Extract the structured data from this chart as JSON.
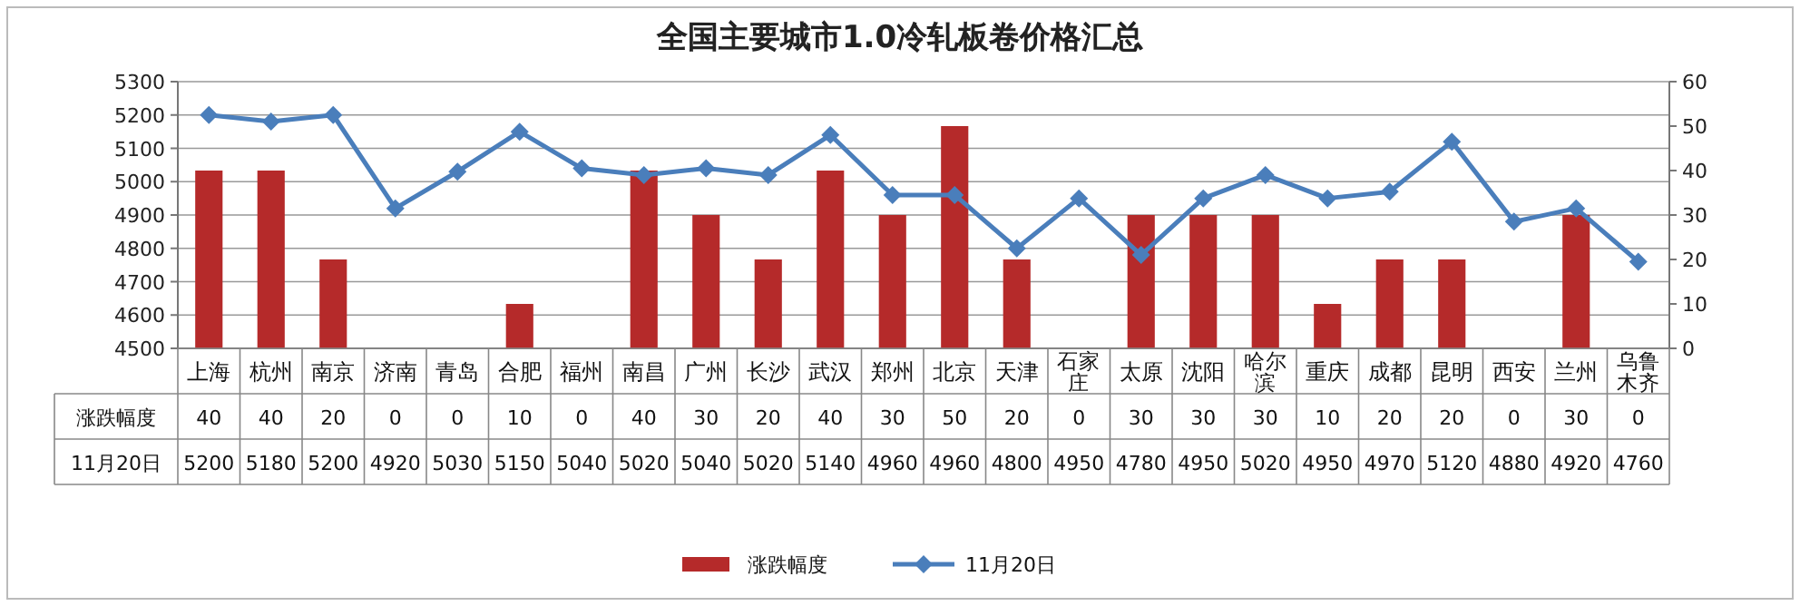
{
  "chart_data": {
    "type": "bar",
    "title": "全国主要城市1.0冷轧板卷价格汇总",
    "categories": [
      "上海",
      "杭州",
      "南京",
      "济南",
      "青岛",
      "合肥",
      "福州",
      "南昌",
      "广州",
      "长沙",
      "武汉",
      "郑州",
      "北京",
      "天津",
      "石家庄",
      "太原",
      "沈阳",
      "哈尔滨",
      "重庆",
      "成都",
      "昆明",
      "西安",
      "兰州",
      "乌鲁木齐"
    ],
    "series": [
      {
        "name": "涨跌幅度",
        "axis": "y2",
        "color": "#b52a2a",
        "values": [
          40,
          40,
          20,
          0,
          0,
          10,
          0,
          40,
          30,
          20,
          40,
          30,
          50,
          20,
          0,
          30,
          30,
          30,
          10,
          20,
          20,
          0,
          30,
          0
        ]
      },
      {
        "name": "11月20日",
        "type": "line",
        "color": "#4a7ebb",
        "values": [
          5200,
          5180,
          5200,
          4920,
          5030,
          5150,
          5040,
          5020,
          5040,
          5020,
          5140,
          4960,
          4960,
          4800,
          4950,
          4780,
          4950,
          5020,
          4950,
          4970,
          5120,
          4880,
          4920,
          4760
        ]
      }
    ],
    "ylim": [
      4500,
      5300
    ],
    "yticks": [
      4500,
      4600,
      4700,
      4800,
      4900,
      5000,
      5100,
      5200,
      5300
    ],
    "y2lim": [
      0,
      60
    ],
    "y2ticks": [
      0,
      10,
      20,
      30,
      40,
      50,
      60
    ],
    "grid": "y",
    "legend": "bottom",
    "marker": "diamond",
    "data_labels": true
  }
}
